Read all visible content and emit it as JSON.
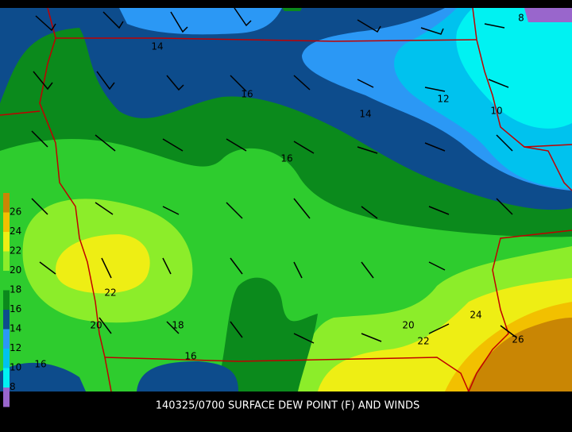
{
  "caption": "140325/0700 SURFACE DEW POINT (F) AND WINDS",
  "legend": {
    "labels": [
      "26",
      "24",
      "22",
      "20",
      "18",
      "16",
      "14",
      "12",
      "10",
      "8"
    ]
  },
  "contour_labels": [
    "8",
    "14",
    "16",
    "14",
    "12",
    "10",
    "16",
    "22",
    "20",
    "18",
    "16",
    "16",
    "20",
    "22",
    "24",
    "26"
  ]
}
